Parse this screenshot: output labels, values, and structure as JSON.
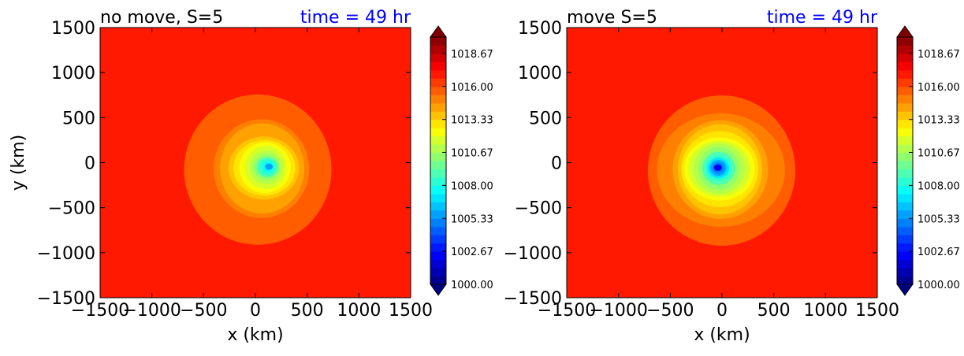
{
  "chart_data": [
    {
      "type": "heatmap",
      "title": "no move, S=5",
      "time_label": "time = 49 hr",
      "xlabel": "x (km)",
      "ylabel": "y (km)",
      "xlim": [
        -1500,
        1500
      ],
      "ylim": [
        -1500,
        1500
      ],
      "xticks": [
        -1500,
        -1000,
        -500,
        0,
        500,
        1000,
        1500
      ],
      "yticks": [
        -1500,
        -1000,
        -500,
        0,
        500,
        1000,
        1500
      ],
      "xtick_labels": [
        "−1500",
        "−1000",
        "−500",
        "0",
        "500",
        "1000",
        "1500"
      ],
      "ytick_labels": [
        "−1500",
        "−1000",
        "−500",
        "0",
        "500",
        "1000",
        "1500"
      ],
      "center": [
        130,
        -45
      ],
      "min_value": 1005.8,
      "ambient_value": 1016.7,
      "colorbar": {
        "ticks": [
          1000.0,
          1002.67,
          1005.33,
          1008.0,
          1010.67,
          1013.33,
          1016.0,
          1018.67
        ],
        "tick_labels": [
          "1000.00",
          "1002.67",
          "1005.33",
          "1008.00",
          "1010.67",
          "1013.33",
          "1016.00",
          "1018.67"
        ],
        "range": [
          1000,
          1020
        ],
        "extend": "both"
      }
    },
    {
      "type": "heatmap",
      "title": "move S=5",
      "time_label": "time = 49 hr",
      "xlabel": "x (km)",
      "ylabel": "",
      "xlim": [
        -1500,
        1500
      ],
      "ylim": [
        -1500,
        1500
      ],
      "xticks": [
        -1500,
        -1000,
        -500,
        0,
        500,
        1000,
        1500
      ],
      "yticks": [
        -1500,
        -1000,
        -500,
        0,
        500,
        1000,
        1500
      ],
      "xtick_labels": [
        "−1500",
        "−1000",
        "−500",
        "0",
        "500",
        "1000",
        "1500"
      ],
      "ytick_labels": [
        "−1500",
        "−1000",
        "−500",
        "0",
        "500",
        "1000",
        "1500"
      ],
      "center": [
        -40,
        -55
      ],
      "min_value": 1002.5,
      "ambient_value": 1016.7,
      "colorbar": {
        "ticks": [
          1000.0,
          1002.67,
          1005.33,
          1008.0,
          1010.67,
          1013.33,
          1016.0,
          1018.67
        ],
        "tick_labels": [
          "1000.00",
          "1002.67",
          "1005.33",
          "1008.00",
          "1010.67",
          "1013.33",
          "1016.00",
          "1018.67"
        ],
        "range": [
          1000,
          1020
        ],
        "extend": "both"
      }
    }
  ],
  "colors": {
    "title_text": "#000000",
    "time_text": "#0000ff",
    "colormap": [
      "#00007f",
      "#0000ff",
      "#007fff",
      "#00ffff",
      "#7fff7f",
      "#ffff00",
      "#ff7f00",
      "#ff0000",
      "#7f0000"
    ]
  }
}
